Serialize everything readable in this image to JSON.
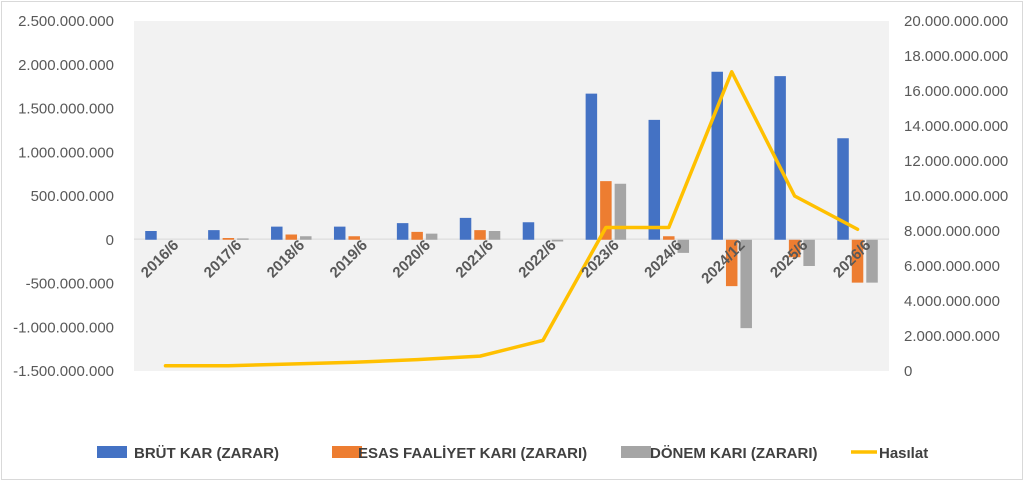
{
  "chart_data": {
    "type": "bar+line",
    "categories": [
      "2016/6",
      "2017/6",
      "2018/6",
      "2019/6",
      "2020/6",
      "2021/6",
      "2022/6",
      "2023/6",
      "2024/6",
      "2024/12",
      "2025/6",
      "2026/6"
    ],
    "series": [
      {
        "name": "BRÜT KAR (ZARAR)",
        "type": "bar",
        "axis": "left",
        "color": "#4472C4",
        "values": [
          100000000,
          110000000,
          150000000,
          150000000,
          190000000,
          250000000,
          200000000,
          1670000000,
          1370000000,
          1920000000,
          1870000000,
          1160000000
        ]
      },
      {
        "name": "ESAS FAALİYET KARI (ZARARI)",
        "type": "bar",
        "axis": "left",
        "color": "#ED7D31",
        "values": [
          0,
          20000000,
          60000000,
          40000000,
          90000000,
          110000000,
          0,
          670000000,
          40000000,
          -530000000,
          -200000000,
          -490000000
        ]
      },
      {
        "name": "DÖNEM KARI (ZARARI)",
        "type": "bar",
        "axis": "left",
        "color": "#A5A5A5",
        "values": [
          0,
          15000000,
          40000000,
          0,
          70000000,
          100000000,
          -20000000,
          640000000,
          -150000000,
          -1010000000,
          -300000000,
          -490000000
        ]
      },
      {
        "name": "Hasılat",
        "type": "line",
        "axis": "right",
        "color": "#FFC000",
        "values": [
          300000000,
          300000000,
          400000000,
          500000000,
          650000000,
          850000000,
          1750000000,
          8200000000,
          8200000000,
          17100000000,
          10000000000,
          8100000000
        ]
      }
    ],
    "left_axis": {
      "ylim": [
        -1500000000,
        2500000000
      ],
      "tick_labels": [
        "2.500.000.000",
        "2.000.000.000",
        "1.500.000.000",
        "1.000.000.000",
        "500.000.000",
        "0",
        "-500.000.000",
        "-1.000.000.000",
        "-1.500.000.000"
      ]
    },
    "right_axis": {
      "ylim": [
        0,
        20000000000
      ],
      "tick_labels": [
        "20.000.000.000",
        "18.000.000.000",
        "16.000.000.000",
        "14.000.000.000",
        "12.000.000.000",
        "10.000.000.000",
        "8.000.000.000",
        "6.000.000.000",
        "4.000.000.000",
        "2.000.000.000",
        "0"
      ]
    },
    "plot_background": "#F2F2F2",
    "grid": false,
    "legend_position": "bottom"
  }
}
